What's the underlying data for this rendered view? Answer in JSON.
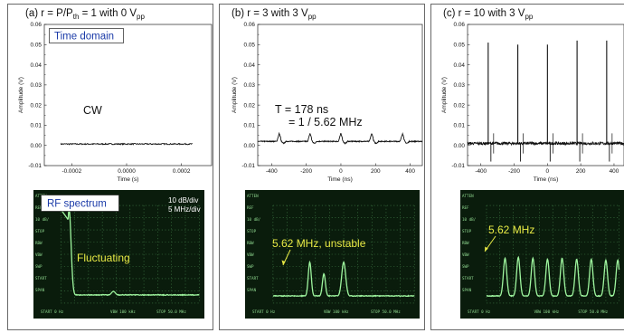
{
  "colors": {
    "trace": "#111111",
    "scope_bg": "#0a1c0c",
    "scope_trace": "#9ef59e",
    "scope_grid": "#3f7a45",
    "annotation": "#e8ea45",
    "label_blue": "#1a3aa8"
  },
  "panels": [
    {
      "title": "(a)  r = P/P",
      "title_sub": "th",
      "title_rest": " = 1 with 0 V",
      "title_sub2": "pp",
      "ylabel": "Amplitude (V)",
      "xlabel": "Time (s)",
      "box_label": "Time domain",
      "annotation": "CW",
      "rf_label": "RF spectrum",
      "rf_scale": [
        "10 dB/div",
        "5 MHz/div"
      ],
      "rf_annotation": "Fluctuating",
      "yticks": [
        "0.06",
        "0.05",
        "0.04",
        "0.03",
        "0.02",
        "0.01",
        "0.00",
        "-0.01"
      ],
      "xticks": [
        "-0.0002",
        "0.0000",
        "0.0002"
      ]
    },
    {
      "title": "(b)  r = 3 with 3 V",
      "title_sub": "pp",
      "ylabel": "Amplitude (V)",
      "xlabel": "Time (ns)",
      "annotation_lines": [
        "T = 178 ns",
        "= 1 / 5.62 MHz"
      ],
      "rf_annotation": "5.62 MHz, unstable",
      "yticks": [
        "0.06",
        "0.05",
        "0.04",
        "0.03",
        "0.02",
        "0.01",
        "0.00",
        "-0.01"
      ],
      "xticks": [
        "-400",
        "-200",
        "0",
        "200",
        "400"
      ]
    },
    {
      "title": "(c)  r = 10 with 3 V",
      "title_sub": "pp",
      "ylabel": "Amplitude (V)",
      "xlabel": "Time (ns)",
      "rf_annotation": "5.62 MHz",
      "yticks": [
        "0.06",
        "0.05",
        "0.04",
        "0.03",
        "0.02",
        "0.01",
        "0.00",
        "-0.01"
      ],
      "xticks": [
        "-400",
        "-200",
        "0",
        "200",
        "400"
      ]
    }
  ],
  "chart_data": [
    {
      "type": "line",
      "title": "(a) r = P/Pth = 1 with 0 Vpp",
      "xlabel": "Time (s)",
      "ylabel": "Amplitude (V)",
      "xlim": [
        -0.0003,
        0.00031
      ],
      "ylim": [
        -0.01,
        0.06
      ],
      "series": [
        {
          "x": [
            -0.00024,
            0.00024
          ],
          "y": [
            0.0007,
            0.0007
          ]
        }
      ]
    },
    {
      "type": "line",
      "title": "(b) r = 3 with 3 Vpp",
      "xlabel": "Time (ns)",
      "ylabel": "Amplitude (V)",
      "xlim": [
        -480,
        470
      ],
      "ylim": [
        -0.01,
        0.06
      ],
      "baseline": 0.002,
      "pulse_times_ns": [
        -356,
        -178,
        0,
        178,
        356
      ],
      "pulse_peak": 0.006
    },
    {
      "type": "line",
      "title": "(c) r = 10 with 3 Vpp",
      "xlabel": "Time (ns)",
      "ylabel": "Amplitude (V)",
      "xlim": [
        -480,
        460
      ],
      "ylim": [
        -0.01,
        0.06
      ],
      "baseline": 0.001,
      "pulse_times_ns": [
        -356,
        -178,
        0,
        178,
        356
      ],
      "pulse_peaks": [
        0.051,
        0.05,
        0.05,
        0.052,
        0.052
      ],
      "pulse_minimum": -0.008
    }
  ],
  "rf_spectra": [
    {
      "visible_peaks": 2,
      "label": "Fluctuating"
    },
    {
      "visible_peaks": 3,
      "label": "5.62 MHz, unstable"
    },
    {
      "visible_peaks": 9,
      "label": "5.62 MHz"
    }
  ]
}
